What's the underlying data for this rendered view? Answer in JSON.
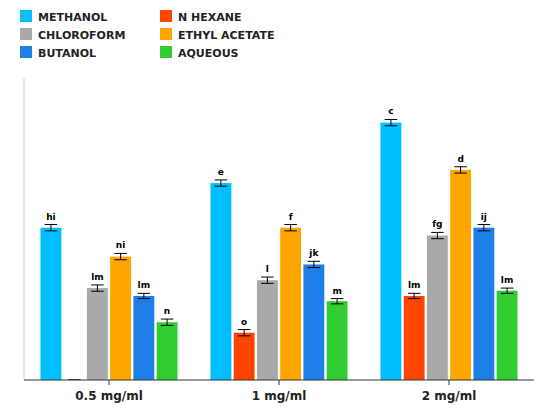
{
  "chart_data": {
    "type": "bar",
    "categories": [
      "0.5 mg/ml",
      "1 mg/ml",
      "2 mg/ml"
    ],
    "series": [
      {
        "name": "METHANOL",
        "color": "#00BFFF",
        "values": [
          5.8,
          7.5,
          9.8
        ],
        "errors": [
          0.12,
          0.12,
          0.12
        ],
        "annotations": [
          "hi",
          "e",
          "c"
        ]
      },
      {
        "name": "N HEXANE",
        "color": "#FF4500",
        "values": [
          0.0,
          1.8,
          3.2
        ],
        "errors": [
          0.0,
          0.12,
          0.1
        ],
        "annotations": [
          null,
          "o",
          "lm"
        ]
      },
      {
        "name": "CHLOROFORM",
        "color": "#A9A9A9",
        "values": [
          3.5,
          3.8,
          5.5
        ],
        "errors": [
          0.12,
          0.12,
          0.12
        ],
        "annotations": [
          "lm",
          "l",
          "fg"
        ]
      },
      {
        "name": "ETHYL ACETATE",
        "color": "#FFA500",
        "values": [
          4.7,
          5.8,
          8.0
        ],
        "errors": [
          0.12,
          0.12,
          0.12
        ],
        "annotations": [
          "ni",
          "f",
          "d"
        ]
      },
      {
        "name": "BUTANOL",
        "color": "#1E7FE8",
        "values": [
          3.2,
          4.4,
          5.8
        ],
        "errors": [
          0.1,
          0.12,
          0.12
        ],
        "annotations": [
          "lm",
          "jk",
          "ij"
        ]
      },
      {
        "name": "AQUEOUS",
        "color": "#32CD32",
        "values": [
          2.2,
          3.0,
          3.4
        ],
        "errors": [
          0.12,
          0.1,
          0.1
        ],
        "annotations": [
          "n",
          "m",
          "lm"
        ]
      }
    ],
    "ylim": [
      0,
      11.5
    ],
    "legend": "top",
    "tick_labels": "x",
    "grid": false
  }
}
